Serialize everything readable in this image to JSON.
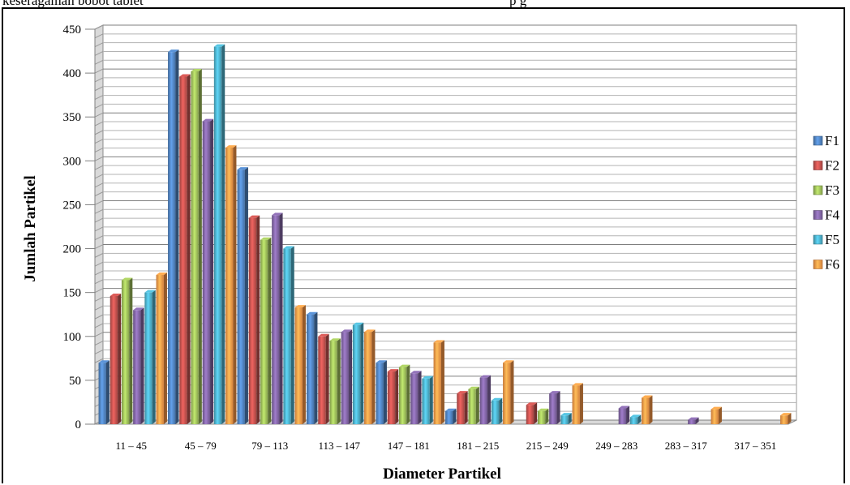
{
  "header": {
    "left_fragment": "keseragaman bobot tablet",
    "right_fragment": "p   g"
  },
  "chart_data": {
    "type": "bar",
    "xlabel": "Diameter Partikel",
    "ylabel": "Jumlah Partikel",
    "ylim": [
      0,
      450
    ],
    "yticks": [
      0,
      50,
      100,
      150,
      200,
      250,
      300,
      350,
      400,
      450
    ],
    "grid": true,
    "legend_position": "right",
    "categories": [
      "11 – 45",
      "45 – 79",
      "79 – 113",
      "113 – 147",
      "147 – 181",
      "181 – 215",
      "215 – 249",
      "249 – 283",
      "283 – 317",
      "317 – 351"
    ],
    "series": [
      {
        "name": "F1",
        "color": "#4F81BD",
        "values": [
          70,
          424,
          290,
          125,
          70,
          15,
          0,
          0,
          0,
          0
        ]
      },
      {
        "name": "F2",
        "color": "#C0504D",
        "values": [
          146,
          396,
          235,
          100,
          60,
          35,
          22,
          0,
          0,
          0
        ]
      },
      {
        "name": "F3",
        "color": "#9BBB59",
        "values": [
          164,
          402,
          210,
          95,
          65,
          40,
          15,
          0,
          0,
          0
        ]
      },
      {
        "name": "F4",
        "color": "#8064A2",
        "values": [
          130,
          345,
          238,
          105,
          58,
          53,
          35,
          18,
          5,
          0
        ]
      },
      {
        "name": "F5",
        "color": "#4BACC6",
        "values": [
          150,
          430,
          200,
          113,
          52,
          27,
          10,
          8,
          0,
          0
        ]
      },
      {
        "name": "F6",
        "color": "#F79646",
        "values": [
          170,
          315,
          133,
          105,
          93,
          70,
          44,
          30,
          17,
          10
        ]
      }
    ]
  }
}
